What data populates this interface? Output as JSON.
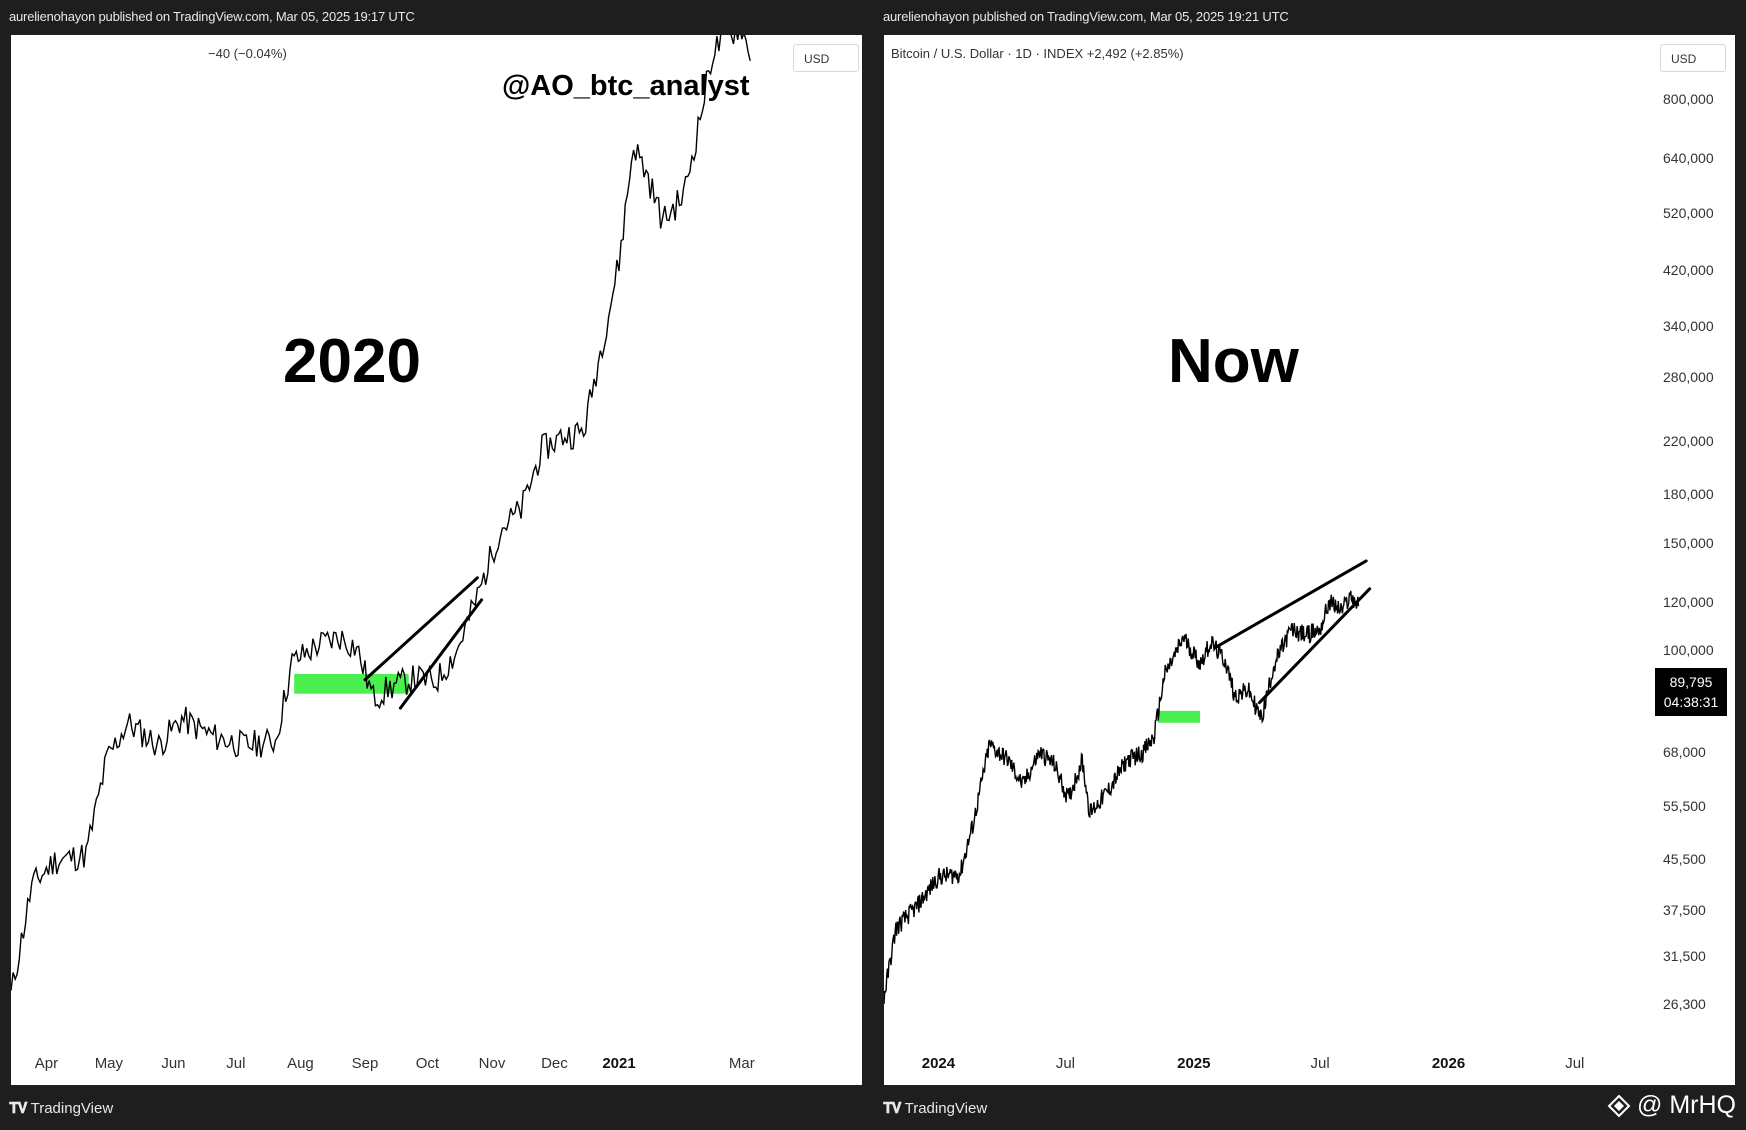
{
  "left": {
    "credit": "aurelienohayon published on TradingView.com, Mar 05, 2025 19:17 UTC",
    "header_change": "−40 (−0.04%)",
    "currency_button": "USD",
    "watermark": "@AO_btc_analyst",
    "label": "2020",
    "footer_brand": "TradingView"
  },
  "right": {
    "credit": "aurelienohayon published on TradingView.com, Mar 05, 2025 19:21 UTC",
    "header_symbol": "Bitcoin / U.S. Dollar · 1D · INDEX  +2,492 (+2.85%)",
    "currency_button": "USD",
    "label": "Now",
    "price_tag": {
      "price": "89,795",
      "countdown": "04:38:31"
    },
    "footer_brand": "TradingView"
  },
  "corner_watermark": "@ MrHQ",
  "colors": {
    "support_band": "#4cef50",
    "price_line": "#000000",
    "background": "#ffffff",
    "frame": "#1e1e1e"
  },
  "chart_data": [
    {
      "type": "line",
      "title": "2020",
      "scale": "log",
      "x_ticks": [
        {
          "label": "Apr",
          "bold": false
        },
        {
          "label": "May",
          "bold": false
        },
        {
          "label": "Jun",
          "bold": false
        },
        {
          "label": "Jul",
          "bold": false
        },
        {
          "label": "Aug",
          "bold": false
        },
        {
          "label": "Sep",
          "bold": false
        },
        {
          "label": "Oct",
          "bold": false
        },
        {
          "label": "Nov",
          "bold": false
        },
        {
          "label": "Dec",
          "bold": false
        },
        {
          "label": "2021",
          "bold": true
        },
        {
          "label": "Mar",
          "bold": false
        }
      ],
      "x": [
        "2020-03-15",
        "2020-03-25",
        "2020-04-05",
        "2020-04-20",
        "2020-04-30",
        "2020-05-10",
        "2020-05-25",
        "2020-06-05",
        "2020-06-20",
        "2020-07-05",
        "2020-07-20",
        "2020-07-28",
        "2020-08-10",
        "2020-08-20",
        "2020-08-28",
        "2020-09-05",
        "2020-09-15",
        "2020-09-25",
        "2020-10-05",
        "2020-10-15",
        "2020-10-25",
        "2020-11-05",
        "2020-11-15",
        "2020-11-25",
        "2020-12-05",
        "2020-12-15",
        "2020-12-25",
        "2021-01-01",
        "2021-01-08",
        "2021-01-15",
        "2021-01-22",
        "2021-02-01",
        "2021-02-08",
        "2021-02-15",
        "2021-02-22",
        "2021-03-01",
        "2021-03-05"
      ],
      "values": [
        5000,
        6500,
        6900,
        7000,
        8800,
        9600,
        9100,
        9700,
        9300,
        9100,
        9200,
        11100,
        11600,
        11800,
        11500,
        10200,
        10500,
        10700,
        10600,
        11400,
        13000,
        15300,
        16000,
        18500,
        19100,
        19300,
        24500,
        29000,
        38500,
        35500,
        32000,
        34000,
        40000,
        48000,
        50000,
        51000,
        47000
      ],
      "support_band": [
        10300,
        10800
      ],
      "wedge": {
        "upper": [
          {
            "x": "2020-09-01",
            "y": 10650
          },
          {
            "x": "2020-10-25",
            "y": 13600
          }
        ],
        "lower": [
          {
            "x": "2020-09-18",
            "y": 9950
          },
          {
            "x": "2020-10-27",
            "y": 12900
          }
        ]
      }
    },
    {
      "type": "line",
      "title": "Now",
      "scale": "log",
      "series": [
        {
          "name": "Bitcoin / U.S. Dollar"
        }
      ],
      "y_ticks": [
        "800,000",
        "640,000",
        "520,000",
        "420,000",
        "340,000",
        "280,000",
        "220,000",
        "180,000",
        "150,000",
        "120,000",
        "100,000",
        "68,000",
        "55,500",
        "45,500",
        "37,500",
        "31,500",
        "26,300"
      ],
      "y_tick_values": [
        800000,
        640000,
        520000,
        420000,
        340000,
        280000,
        220000,
        180000,
        150000,
        120000,
        100000,
        68000,
        55500,
        45500,
        37500,
        31500,
        26300
      ],
      "x_ticks": [
        {
          "label": "2024",
          "bold": true
        },
        {
          "label": "Jul",
          "bold": false
        },
        {
          "label": "2025",
          "bold": true
        },
        {
          "label": "Jul",
          "bold": false
        },
        {
          "label": "2026",
          "bold": true
        },
        {
          "label": "Jul",
          "bold": false
        }
      ],
      "x": [
        "2023-10-15",
        "2023-11-01",
        "2023-12-01",
        "2024-01-01",
        "2024-02-01",
        "2024-02-20",
        "2024-03-14",
        "2024-04-10",
        "2024-05-01",
        "2024-05-25",
        "2024-06-15",
        "2024-07-05",
        "2024-07-25",
        "2024-08-05",
        "2024-09-01",
        "2024-09-27",
        "2024-10-20",
        "2024-11-05",
        "2024-11-20",
        "2024-12-05",
        "2024-12-17",
        "2025-01-10",
        "2025-01-25",
        "2025-02-15",
        "2025-03-01",
        "2025-03-20",
        "2025-04-08",
        "2025-04-25",
        "2025-05-20",
        "2025-06-10",
        "2025-07-01",
        "2025-07-14",
        "2025-08-01",
        "2025-08-14",
        "2025-08-25"
      ],
      "values": [
        27000,
        35000,
        38000,
        42500,
        43000,
        52000,
        70000,
        66000,
        60000,
        68000,
        65000,
        57000,
        66000,
        54000,
        59000,
        66000,
        68000,
        72000,
        91000,
        98000,
        105000,
        95000,
        103000,
        96000,
        84000,
        86000,
        77000,
        94000,
        108000,
        106000,
        108000,
        120000,
        116000,
        123000,
        118000
      ],
      "support_band": [
        76000,
        79500
      ],
      "price_label": 89795,
      "wedge": {
        "upper": [
          {
            "x": "2025-02-01",
            "y": 101000
          },
          {
            "x": "2025-09-05",
            "y": 140000
          }
        ],
        "lower": [
          {
            "x": "2025-04-05",
            "y": 82000
          },
          {
            "x": "2025-09-10",
            "y": 126000
          }
        ]
      }
    }
  ]
}
